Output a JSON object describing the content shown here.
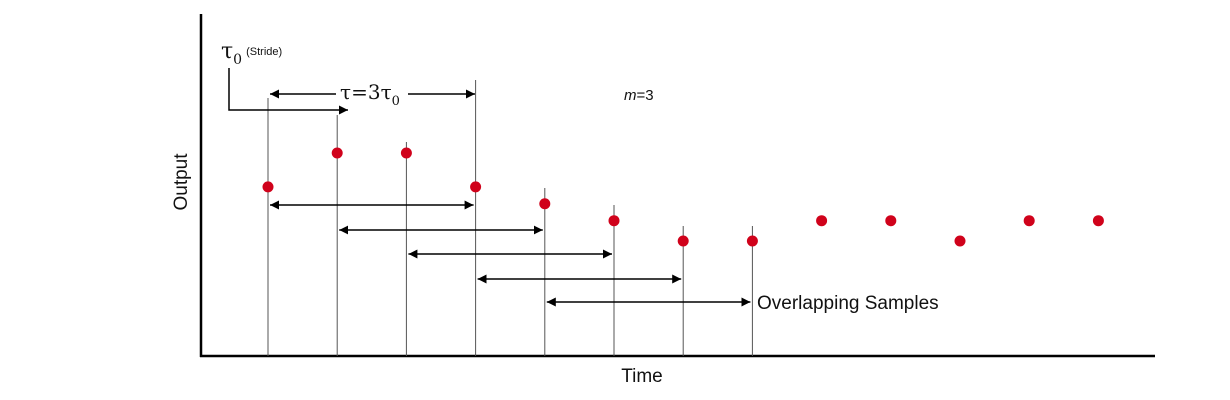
{
  "axes": {
    "x_label": "Time",
    "y_label": "Output"
  },
  "stride": {
    "symbol": "τ",
    "subscript": "0",
    "note": "(Stride)"
  },
  "tau_eq": {
    "lhs": "τ",
    "eq": "=3",
    "rhs": "τ",
    "subscript": "0"
  },
  "m_label": {
    "var": "m",
    "value": "=3"
  },
  "overlap_label": "Overlapping Samples",
  "colors": {
    "point": "#d0021b",
    "line": "#000000",
    "stem": "#555555"
  },
  "samples": {
    "values": [
      3.3,
      4.3,
      4.3,
      3.3,
      2.8,
      2.3,
      1.7,
      1.7,
      2.3,
      2.3,
      1.7,
      2.3,
      2.3
    ],
    "stems": [
      0,
      1,
      2,
      3,
      4,
      5,
      6,
      7
    ],
    "overlap_intervals": [
      [
        0,
        3
      ],
      [
        1,
        4
      ],
      [
        2,
        5
      ],
      [
        3,
        6
      ],
      [
        4,
        7
      ]
    ]
  }
}
